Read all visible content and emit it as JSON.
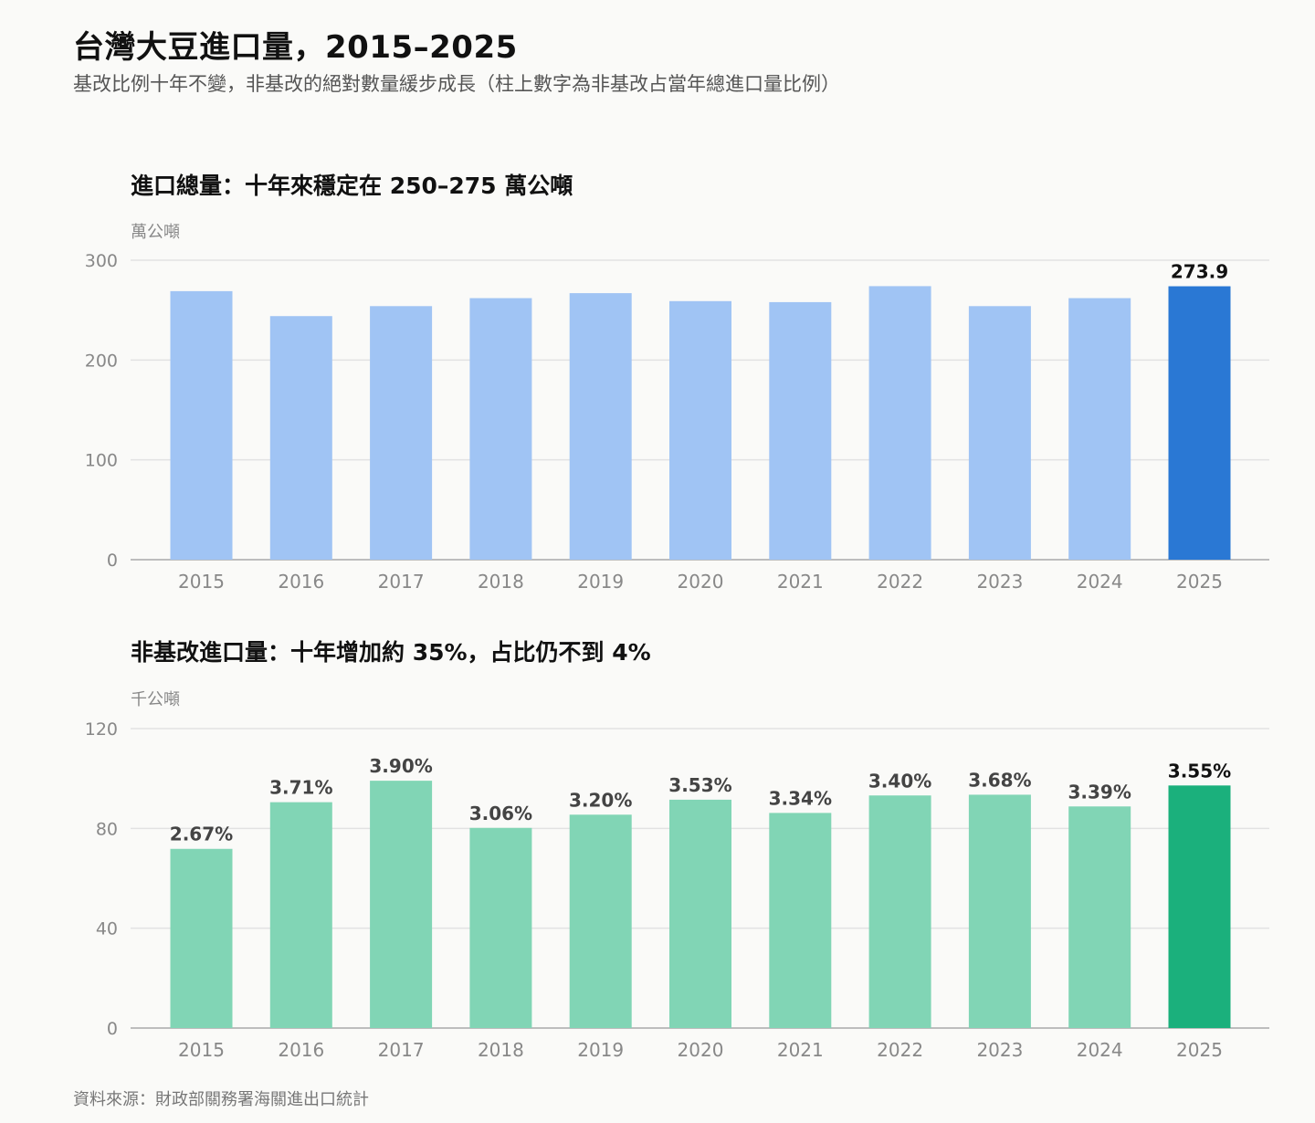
{
  "header": {
    "title": "台灣大豆進口量，2015–2025",
    "subtitle": "基改比例十年不變，非基改的絕對數量緩步成長（柱上數字為非基改占當年總進口量比例）"
  },
  "source": "資料來源：財政部關務署海關進出口統計",
  "colors": {
    "total_bar": "#a0c4f4",
    "total_highlight": "#2a78d4",
    "nongmo_bar": "#81d5b5",
    "nongmo_highlight": "#1bb07c",
    "grid": "#e2e2e2",
    "axis": "#bdbdbd",
    "tick_text": "#888888",
    "label_text": "#444444"
  },
  "chart_data": [
    {
      "id": "total",
      "type": "bar",
      "title": "進口總量：十年來穩定在 250–275 萬公噸",
      "unit": "萬公噸",
      "categories": [
        "2015",
        "2016",
        "2017",
        "2018",
        "2019",
        "2020",
        "2021",
        "2022",
        "2023",
        "2024",
        "2025"
      ],
      "values": [
        269,
        244,
        254,
        262,
        267,
        259,
        258,
        274,
        254,
        262,
        273.9
      ],
      "bar_labels": [
        "",
        "",
        "",
        "",
        "",
        "",
        "",
        "",
        "",
        "",
        "273.9"
      ],
      "highlight_index": 10,
      "ylim": [
        0,
        300
      ],
      "yticks": [
        0,
        100,
        200,
        300
      ],
      "grid": true
    },
    {
      "id": "nongmo",
      "type": "bar",
      "title": "非基改進口量：十年增加約 35%，占比仍不到 4%",
      "unit": "千公噸",
      "categories": [
        "2015",
        "2016",
        "2017",
        "2018",
        "2019",
        "2020",
        "2021",
        "2022",
        "2023",
        "2024",
        "2025"
      ],
      "values": [
        71.8,
        90.5,
        99.1,
        80.2,
        85.5,
        91.5,
        86.2,
        93.2,
        93.5,
        88.8,
        97.2
      ],
      "bar_labels": [
        "2.67%",
        "3.71%",
        "3.90%",
        "3.06%",
        "3.20%",
        "3.53%",
        "3.34%",
        "3.40%",
        "3.68%",
        "3.39%",
        "3.55%"
      ],
      "highlight_index": 10,
      "ylim": [
        0,
        120
      ],
      "yticks": [
        0,
        40,
        80,
        120
      ],
      "grid": true
    }
  ]
}
